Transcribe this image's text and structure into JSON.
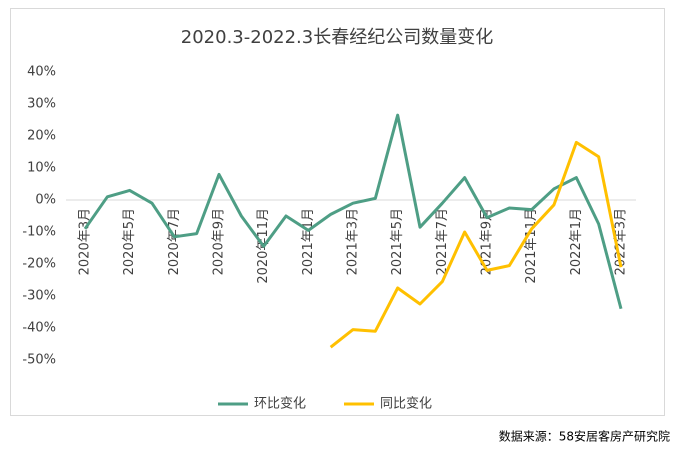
{
  "chart_data": {
    "type": "line",
    "title": "2020.3-2022.3长春经纪公司数量变化",
    "categories": [
      "2020年3月",
      null,
      "2020年5月",
      null,
      "2020年7月",
      null,
      "2020年9月",
      null,
      "2020年11月",
      null,
      "2021年1月",
      null,
      "2021年3月",
      null,
      "2021年5月",
      null,
      "2021年7月",
      null,
      "2021年9月",
      null,
      "2021年11月",
      null,
      "2022年1月",
      null,
      "2022年3月"
    ],
    "series": [
      {
        "name": "环比变化",
        "color": "#4e9e85",
        "values": [
          -9,
          1,
          3,
          -1,
          -11.5,
          -10.5,
          8,
          -5,
          -14.5,
          -5,
          -9.5,
          -4.5,
          -1,
          0.5,
          26.5,
          -8.5,
          -1,
          7,
          -5.5,
          -2.5,
          -3,
          3.5,
          7,
          -7.5,
          -34
        ]
      },
      {
        "name": "同比变化",
        "color": "#ffc000",
        "values": [
          null,
          null,
          null,
          null,
          null,
          null,
          null,
          null,
          null,
          null,
          null,
          -46,
          -40.5,
          -41,
          -27.5,
          -32.5,
          -25.5,
          -10,
          -22,
          -20.5,
          -9,
          -1.5,
          18,
          13.5,
          -21
        ]
      }
    ],
    "ylim": [
      -50,
      40
    ],
    "yticks": [
      {
        "value": -50,
        "label": "-50%"
      },
      {
        "value": -40,
        "label": "-40%"
      },
      {
        "value": -30,
        "label": "-30%"
      },
      {
        "value": -20,
        "label": "-20%"
      },
      {
        "value": -10,
        "label": "-10%"
      },
      {
        "value": 0,
        "label": "0%"
      },
      {
        "value": 10,
        "label": "10%"
      },
      {
        "value": 20,
        "label": "20%"
      },
      {
        "value": 30,
        "label": "30%"
      },
      {
        "value": 40,
        "label": "40%"
      }
    ],
    "legend": "bottom",
    "source": "数据来源：58安居客房产研究院"
  }
}
